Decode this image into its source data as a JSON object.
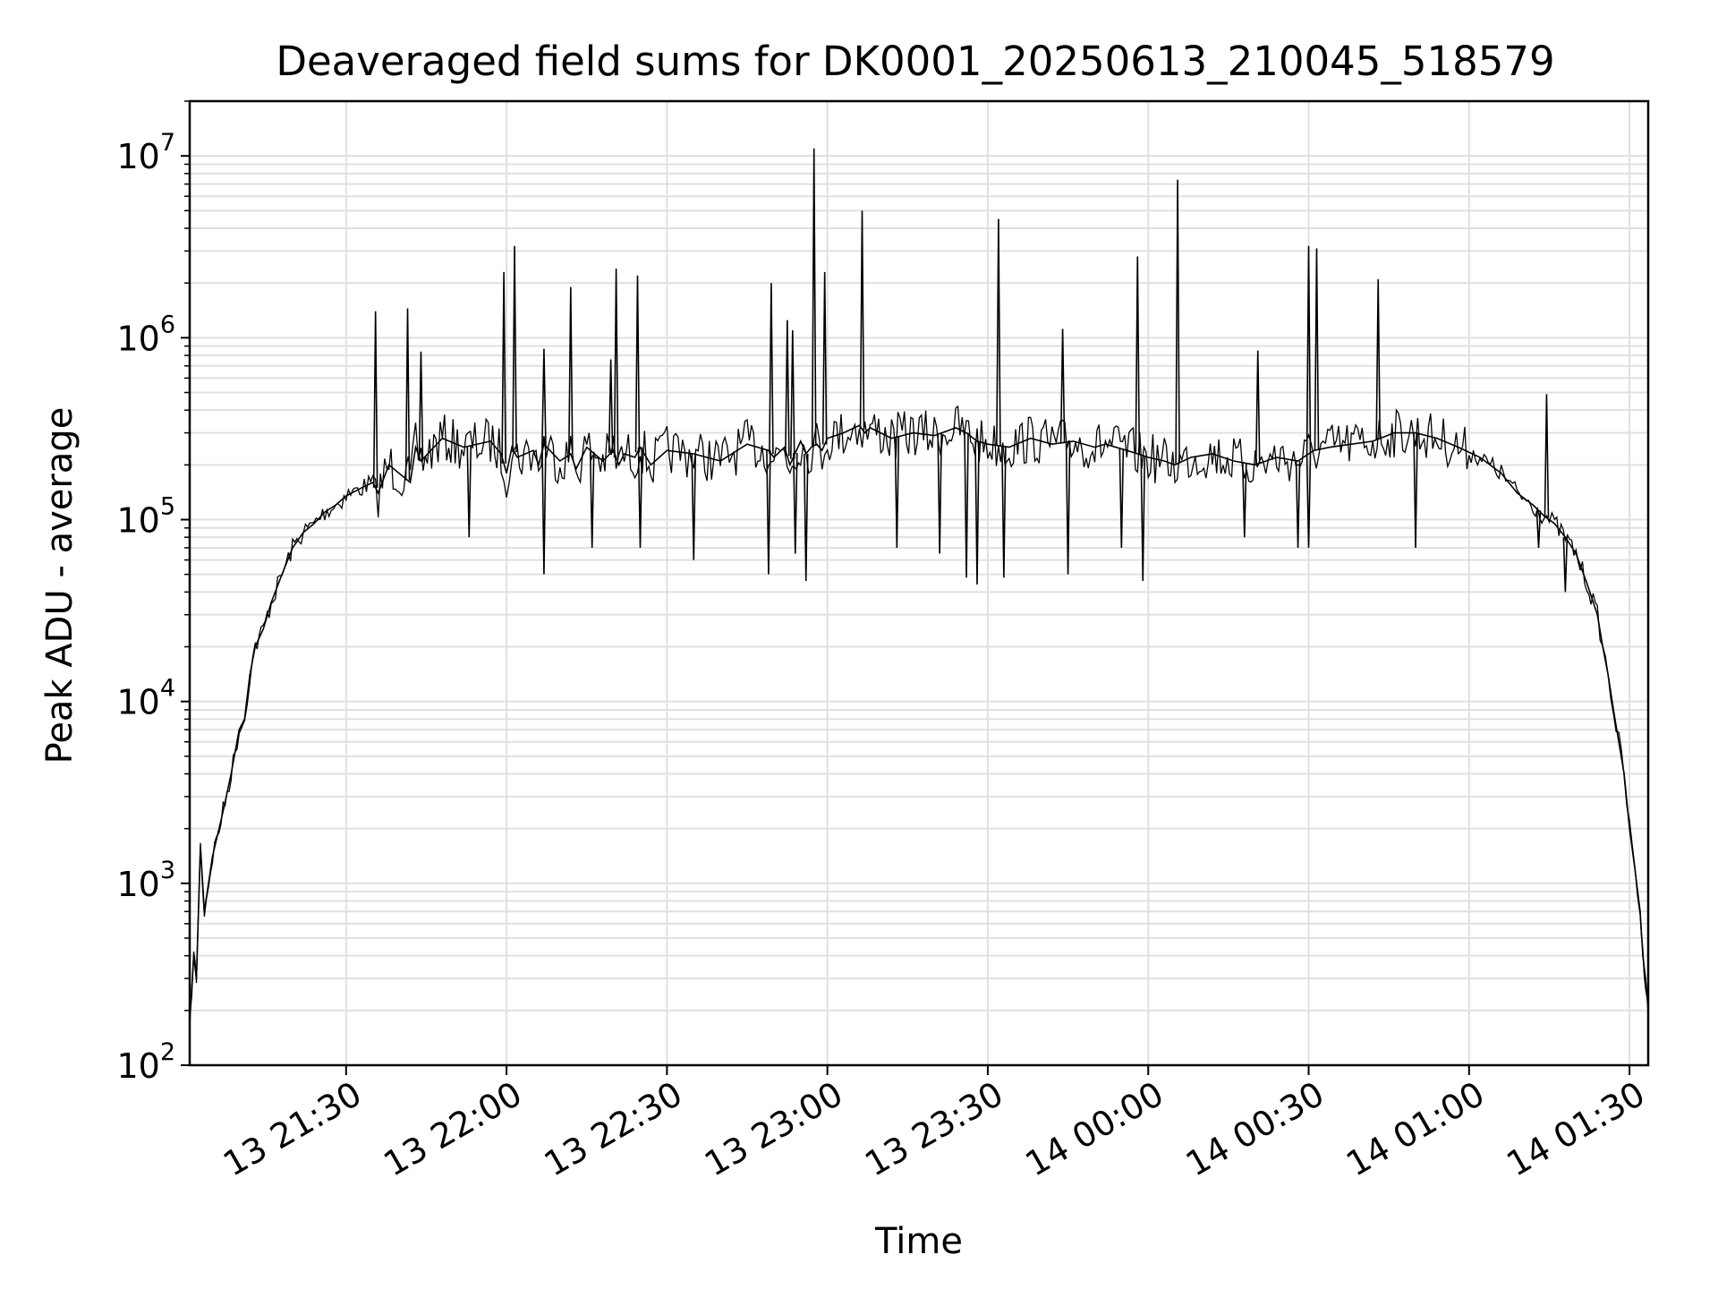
{
  "chart_data": {
    "type": "line",
    "title": "Deaveraged field sums for DK0001_20250613_210045_518579",
    "xlabel": "Time",
    "ylabel": "Peak ADU - average",
    "y_scale": "log",
    "ylim": [
      100,
      20000000
    ],
    "xlim": [
      "2025-06-13 21:00:45",
      "2025-06-14 01:33:30"
    ],
    "x_ticks": [
      {
        "label": "13 21:30",
        "time": "2025-06-13 21:30:00"
      },
      {
        "label": "13 22:00",
        "time": "2025-06-13 22:00:00"
      },
      {
        "label": "13 22:30",
        "time": "2025-06-13 22:30:00"
      },
      {
        "label": "13 23:00",
        "time": "2025-06-13 23:00:00"
      },
      {
        "label": "13 23:30",
        "time": "2025-06-13 23:30:00"
      },
      {
        "label": "14 00:00",
        "time": "2025-06-14 00:00:00"
      },
      {
        "label": "14 00:30",
        "time": "2025-06-14 00:30:00"
      },
      {
        "label": "14 01:00",
        "time": "2025-06-14 01:00:00"
      },
      {
        "label": "14 01:30",
        "time": "2025-06-14 01:30:00"
      }
    ],
    "y_ticks": [
      {
        "base": "10",
        "exp": "2",
        "value": 100
      },
      {
        "base": "10",
        "exp": "3",
        "value": 1000
      },
      {
        "base": "10",
        "exp": "4",
        "value": 10000
      },
      {
        "base": "10",
        "exp": "5",
        "value": 100000
      },
      {
        "base": "10",
        "exp": "6",
        "value": 1000000
      },
      {
        "base": "10",
        "exp": "7",
        "value": 10000000
      }
    ],
    "grid": "major and minor",
    "line_color": "#000000",
    "grid_color": "#e0e0e0",
    "series": [
      {
        "time": [
          "2025-06-13 21:00:45",
          "2025-06-13 21:01:30",
          "2025-06-13 21:02:00",
          "2025-06-13 21:02:45",
          "2025-06-13 21:03:30",
          "2025-06-13 21:05:00",
          "2025-06-13 21:07:00",
          "2025-06-13 21:08:30",
          "2025-06-13 21:10:00",
          "2025-06-13 21:11:00",
          "2025-06-13 21:12:00",
          "2025-06-13 21:13:00",
          "2025-06-13 21:14:30",
          "2025-06-13 21:16:00",
          "2025-06-13 21:18:00",
          "2025-06-13 21:20:00",
          "2025-06-13 21:22:00",
          "2025-06-13 21:24:00",
          "2025-06-13 21:26:00",
          "2025-06-13 21:28:00",
          "2025-06-13 21:30:00",
          "2025-06-13 21:33:00",
          "2025-06-13 21:35:00",
          "2025-06-13 21:36:00",
          "2025-06-13 21:38:00",
          "2025-06-13 21:42:00",
          "2025-06-13 21:43:00",
          "2025-06-13 21:44:00",
          "2025-06-13 21:48:00",
          "2025-06-13 21:52:00",
          "2025-06-13 21:57:00",
          "2025-06-13 21:59:00",
          "2025-06-13 22:00:00",
          "2025-06-13 22:01:00",
          "2025-06-13 22:02:00",
          "2025-06-13 22:05:00",
          "2025-06-13 22:06:00",
          "2025-06-13 22:07:00",
          "2025-06-13 22:10:00",
          "2025-06-13 22:12:00",
          "2025-06-13 22:13:00",
          "2025-06-13 22:15:00",
          "2025-06-13 22:18:00",
          "2025-06-13 22:20:00",
          "2025-06-13 22:21:00",
          "2025-06-13 22:22:00",
          "2025-06-13 22:24:00",
          "2025-06-13 22:25:00",
          "2025-06-13 22:27:00",
          "2025-06-13 22:30:00",
          "2025-06-13 22:35:00",
          "2025-06-13 22:40:00",
          "2025-06-13 22:45:00",
          "2025-06-13 22:49:00",
          "2025-06-13 22:50:00",
          "2025-06-13 22:52:00",
          "2025-06-13 22:53:00",
          "2025-06-13 22:55:00",
          "2025-06-13 22:56:00",
          "2025-06-13 22:57:00",
          "2025-06-13 22:58:00",
          "2025-06-13 22:59:00",
          "2025-06-13 23:00:00",
          "2025-06-13 23:03:00",
          "2025-06-13 23:06:00",
          "2025-06-13 23:07:00",
          "2025-06-13 23:08:00",
          "2025-06-13 23:12:00",
          "2025-06-13 23:16:00",
          "2025-06-13 23:20:00",
          "2025-06-13 23:24:00",
          "2025-06-13 23:26:00",
          "2025-06-13 23:28:00",
          "2025-06-13 23:30:00",
          "2025-06-13 23:34:00",
          "2025-06-13 23:38:00",
          "2025-06-13 23:42:00",
          "2025-06-13 23:46:00",
          "2025-06-13 23:50:00",
          "2025-06-13 23:52:00",
          "2025-06-13 23:56:00",
          "2025-06-13 23:58:00",
          "2025-06-14 00:00:00",
          "2025-06-14 00:03:00",
          "2025-06-14 00:05:00",
          "2025-06-14 00:08:00",
          "2025-06-14 00:12:00",
          "2025-06-14 00:16:00",
          "2025-06-14 00:20:00",
          "2025-06-14 00:24:00",
          "2025-06-14 00:28:00",
          "2025-06-14 00:30:00",
          "2025-06-14 00:31:00",
          "2025-06-14 00:34:00",
          "2025-06-14 00:38:00",
          "2025-06-14 00:42:00",
          "2025-06-14 00:46:00",
          "2025-06-14 00:50:00",
          "2025-06-14 00:54:00",
          "2025-06-14 00:58:00",
          "2025-06-14 01:02:00",
          "2025-06-14 01:06:00",
          "2025-06-14 01:09:00",
          "2025-06-14 01:12:00",
          "2025-06-14 01:14:00",
          "2025-06-14 01:15:00",
          "2025-06-14 01:16:00",
          "2025-06-14 01:18:00",
          "2025-06-14 01:20:00",
          "2025-06-14 01:22:00",
          "2025-06-14 01:24:00",
          "2025-06-14 01:25:00",
          "2025-06-14 01:26:00",
          "2025-06-14 01:27:00",
          "2025-06-14 01:28:00",
          "2025-06-14 01:29:00",
          "2025-06-14 01:30:00",
          "2025-06-14 01:31:00",
          "2025-06-14 01:32:00",
          "2025-06-14 01:32:30",
          "2025-06-14 01:33:00",
          "2025-06-14 01:33:30"
        ],
        "values": [
          170,
          400,
          300,
          1600,
          700,
          1400,
          2500,
          4000,
          7000,
          8000,
          14000,
          20000,
          25000,
          35000,
          50000,
          70000,
          85000,
          95000,
          110000,
          120000,
          135000,
          150000,
          160000,
          140000,
          200000,
          160000,
          250000,
          210000,
          280000,
          250000,
          270000,
          230000,
          180000,
          250000,
          220000,
          240000,
          200000,
          260000,
          210000,
          230000,
          190000,
          250000,
          210000,
          240000,
          200000,
          230000,
          220000,
          250000,
          200000,
          240000,
          230000,
          210000,
          260000,
          240000,
          220000,
          250000,
          200000,
          270000,
          230000,
          250000,
          260000,
          240000,
          280000,
          300000,
          330000,
          300000,
          320000,
          280000,
          300000,
          290000,
          320000,
          300000,
          270000,
          260000,
          250000,
          280000,
          260000,
          270000,
          250000,
          260000,
          240000,
          230000,
          220000,
          210000,
          200000,
          220000,
          230000,
          210000,
          200000,
          220000,
          210000,
          230000,
          240000,
          250000,
          260000,
          270000,
          300000,
          300000,
          280000,
          250000,
          220000,
          180000,
          140000,
          120000,
          105000,
          100000,
          95000,
          80000,
          65000,
          45000,
          30000,
          20000,
          14000,
          9000,
          6000,
          4000,
          2000,
          1200,
          700,
          400,
          300,
          200
        ]
      },
      {
        "spike_times": [
          "2025-06-13 21:35:30",
          "2025-06-13 21:41:30",
          "2025-06-13 21:44:00",
          "2025-06-13 21:59:30",
          "2025-06-13 22:01:30",
          "2025-06-13 22:07:00",
          "2025-06-13 22:12:00",
          "2025-06-13 22:19:30",
          "2025-06-13 22:20:30",
          "2025-06-13 22:24:30",
          "2025-06-13 22:49:30",
          "2025-06-13 22:52:30",
          "2025-06-13 22:53:30",
          "2025-06-13 22:57:30",
          "2025-06-13 22:59:30",
          "2025-06-13 23:06:30",
          "2025-06-13 23:32:00",
          "2025-06-13 23:44:00",
          "2025-06-13 23:58:00",
          "2025-06-14 00:05:30",
          "2025-06-14 00:20:30",
          "2025-06-14 00:30:00",
          "2025-06-14 00:31:30",
          "2025-06-14 00:43:00",
          "2025-06-14 01:14:30"
        ],
        "spike_values": [
          1400000,
          1450000,
          840000,
          2300000,
          3200000,
          870000,
          1900000,
          760000,
          2400000,
          2200000,
          2000000,
          1250000,
          1100000,
          11000000,
          2300000,
          5000000,
          4500000,
          1120000,
          2800000,
          7400000,
          850000,
          3200000,
          3100000,
          2100000,
          490000
        ],
        "dip_times": [
          "2025-06-13 21:53:00",
          "2025-06-13 22:07:00",
          "2025-06-13 22:16:00",
          "2025-06-13 22:25:00",
          "2025-06-13 22:35:00",
          "2025-06-13 22:49:00",
          "2025-06-13 22:54:00",
          "2025-06-13 22:56:00",
          "2025-06-13 23:13:00",
          "2025-06-13 23:21:00",
          "2025-06-13 23:26:00",
          "2025-06-13 23:28:00",
          "2025-06-13 23:33:00",
          "2025-06-13 23:45:00",
          "2025-06-13 23:55:00",
          "2025-06-13 23:59:00",
          "2025-06-14 00:18:00",
          "2025-06-14 00:28:00",
          "2025-06-14 00:30:00",
          "2025-06-14 00:50:00",
          "2025-06-14 01:13:00",
          "2025-06-14 01:18:00"
        ],
        "dip_values": [
          80000,
          50000,
          70000,
          70000,
          60000,
          50000,
          65000,
          46000,
          70000,
          65000,
          48000,
          44000,
          48000,
          50000,
          70000,
          46000,
          80000,
          70000,
          70000,
          70000,
          70000,
          40000
        ]
      }
    ]
  }
}
